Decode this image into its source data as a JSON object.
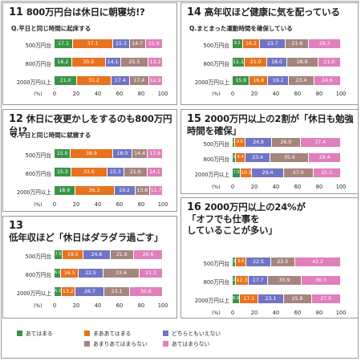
{
  "colors": {
    "agree": "#3a9447",
    "somewhat_agree": "#e8731e",
    "neither": "#6f74c4",
    "somewhat_disagree": "#a6857e",
    "disagree": "#e07fbb"
  },
  "legend": [
    {
      "label": "あてはまる",
      "color": "#3a9447"
    },
    {
      "label": "まああてはまる",
      "color": "#e8731e"
    },
    {
      "label": "どちらともいえない",
      "color": "#6f74c4"
    },
    {
      "label": "あまりあてはまらない",
      "color": "#a6857e"
    },
    {
      "label": "あてはまらない",
      "color": "#e07fbb"
    }
  ],
  "chart_data": [
    {
      "type": "bar",
      "orientation": "horizontal",
      "stacked": true,
      "number": "11",
      "title": "800万円台は休日に朝寝坊!?",
      "question": "Q.平日と同じ時間に起床する",
      "categories": [
        "500万円台",
        "800万円台",
        "2000万円以上"
      ],
      "xlim": [
        0,
        100
      ],
      "xticks": [
        0,
        20,
        40,
        60,
        80,
        100
      ],
      "xunit": "(%)",
      "series": [
        {
          "name": "あてはまる",
          "values": [
            17.1,
            16.2,
            21.0
          ]
        },
        {
          "name": "まああてはまる",
          "values": [
            37.1,
            30.9,
            31.2
          ]
        },
        {
          "name": "どちらともいえない",
          "values": [
            15.3,
            14.1,
            17.4
          ]
        },
        {
          "name": "あまりあてはまらない",
          "values": [
            14.7,
            25.5,
            17.4
          ]
        },
        {
          "name": "あてはまらない",
          "values": [
            15.9,
            13.2,
            12.9
          ]
        }
      ]
    },
    {
      "type": "bar",
      "orientation": "horizontal",
      "stacked": true,
      "number": "14",
      "title": "高年収ほど健康に気を配っている",
      "question": "Q.まとまった運動時間を確保している",
      "categories": [
        "500万円台",
        "800万円台",
        "2000万円以上"
      ],
      "xlim": [
        0,
        100
      ],
      "xticks": [
        0,
        20,
        40,
        60,
        80,
        100
      ],
      "xunit": "(%)",
      "series": [
        {
          "name": "あてはまる",
          "values": [
            9.3,
            11.1,
            15.9
          ]
        },
        {
          "name": "まああてはまる",
          "values": [
            16.2,
            21.0,
            16.8
          ]
        },
        {
          "name": "どちらともいえない",
          "values": [
            23.7,
            18.0,
            19.2
          ]
        },
        {
          "name": "あまりあてはまらない",
          "values": [
            21.6,
            28.8,
            23.4
          ]
        },
        {
          "name": "あてはまらない",
          "values": [
            29.3,
            21.0,
            24.6
          ]
        }
      ]
    },
    {
      "type": "bar",
      "orientation": "horizontal",
      "stacked": true,
      "number": "12",
      "title": "休日に夜更かしをするのも800万円台!?",
      "question": "Q.平日と同じ時間に就寝する",
      "categories": [
        "500万円台",
        "800万円台",
        "2000万円以上"
      ],
      "xlim": [
        0,
        100
      ],
      "xticks": [
        0,
        20,
        40,
        60,
        80,
        100
      ],
      "xunit": "(%)",
      "series": [
        {
          "name": "あてはまる",
          "values": [
            15.0,
            15.3,
            18.9
          ]
        },
        {
          "name": "まああてはまる",
          "values": [
            38.9,
            33.6,
            36.3
          ]
        },
        {
          "name": "どちらともいえない",
          "values": [
            18.0,
            15.3,
            19.2
          ]
        },
        {
          "name": "あまりあてはまらない",
          "values": [
            14.4,
            21.6,
            13.8
          ]
        },
        {
          "name": "あてはまらない",
          "values": [
            13.8,
            14.1,
            11.7
          ]
        }
      ]
    },
    {
      "type": "bar",
      "orientation": "horizontal",
      "stacked": true,
      "number": "15",
      "title": "2000万円以上の2割が「休日も勉強時間を確保」",
      "question": "",
      "categories": [
        "500万円台",
        "800万円台",
        "2000万円以上"
      ],
      "xlim": [
        0,
        100
      ],
      "xticks": [
        0,
        20,
        40,
        60,
        80,
        100
      ],
      "xunit": "(%)",
      "series": [
        {
          "name": "あてはまる",
          "values": [
            2.1,
            3.3,
            7.5
          ]
        },
        {
          "name": "まああてはまる",
          "values": [
            9.6,
            8.4,
            10.5
          ]
        },
        {
          "name": "どちらともいえない",
          "values": [
            24.9,
            23.4,
            29.4
          ]
        },
        {
          "name": "あまりあてはまらない",
          "values": [
            26.0,
            35.4,
            27.0
          ]
        },
        {
          "name": "あてはまらない",
          "values": [
            37.4,
            29.4,
            25.5
          ]
        }
      ]
    },
    {
      "type": "bar",
      "orientation": "horizontal",
      "stacked": true,
      "number": "13",
      "title": "低年収ほど「休日はダラダラ過ごす」",
      "question": "",
      "categories": [
        "500万円台",
        "800万円台",
        "2000万円以上"
      ],
      "xlim": [
        0,
        100
      ],
      "xticks": [
        0,
        20,
        40,
        60,
        80,
        100
      ],
      "xunit": "(%)",
      "series": [
        {
          "name": "あてはまる",
          "values": [
            7.5,
            6.0,
            6.3
          ]
        },
        {
          "name": "まああてはまる",
          "values": [
            19.5,
            16.5,
            13.2
          ]
        },
        {
          "name": "どちらともいえない",
          "values": [
            24.6,
            22.5,
            26.7
          ]
        },
        {
          "name": "あまりあてはまらない",
          "values": [
            21.9,
            33.6,
            23.1
          ]
        },
        {
          "name": "あてはまらない",
          "values": [
            26.6,
            21.3,
            30.6
          ]
        }
      ]
    },
    {
      "type": "bar",
      "orientation": "horizontal",
      "stacked": true,
      "number": "16",
      "title": "2000万円以上の24%が\n「オフでも仕事を\nしていることが多い」",
      "question": "",
      "categories": [
        "500万円台",
        "800万円台",
        "2000万円以上"
      ],
      "xlim": [
        0,
        100
      ],
      "xticks": [
        0,
        20,
        40,
        60,
        80,
        100
      ],
      "xunit": "(%)",
      "series": [
        {
          "name": "あてはまる",
          "values": [
            3.3,
            2.7,
            6.9
          ]
        },
        {
          "name": "まああてはまる",
          "values": [
            9.6,
            12.3,
            17.1
          ]
        },
        {
          "name": "どちらともいえない",
          "values": [
            22.5,
            17.7,
            23.1
          ]
        },
        {
          "name": "あまりあてはまらない",
          "values": [
            22.5,
            30.9,
            25.8
          ]
        },
        {
          "name": "あてはまらない",
          "values": [
            42.2,
            36.3,
            27.0
          ]
        }
      ]
    }
  ]
}
